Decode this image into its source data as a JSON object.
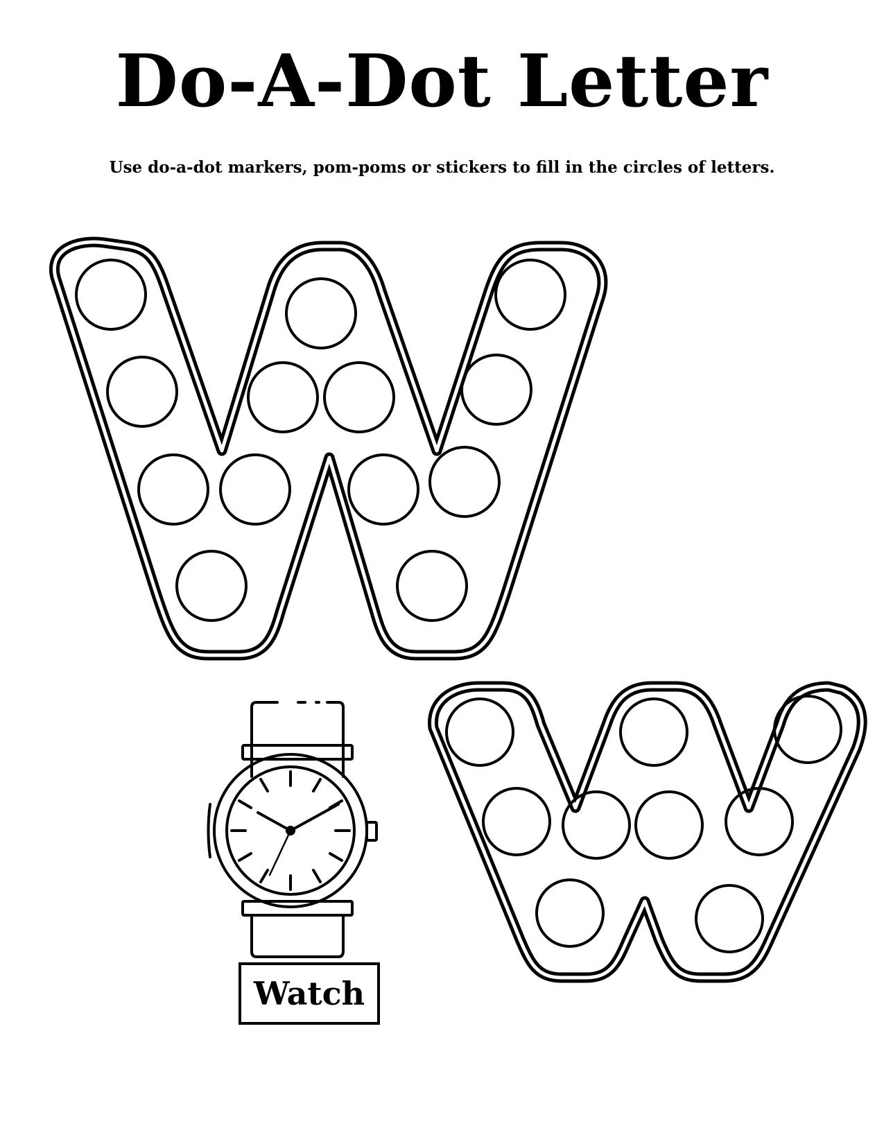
{
  "page": {
    "title": "Do-A-Dot Letter",
    "instructions": "Use do-a-dot markers, pom-poms or stickers to fill in the circles of letters."
  },
  "letters": {
    "uppercase": {
      "letter": "W",
      "dot_count": 13
    },
    "lowercase": {
      "letter": "w",
      "dot_count": 9
    }
  },
  "picture": {
    "icon": "wristwatch-icon",
    "word": "Watch"
  },
  "colors": {
    "ink": "#000000",
    "paper": "#ffffff"
  }
}
